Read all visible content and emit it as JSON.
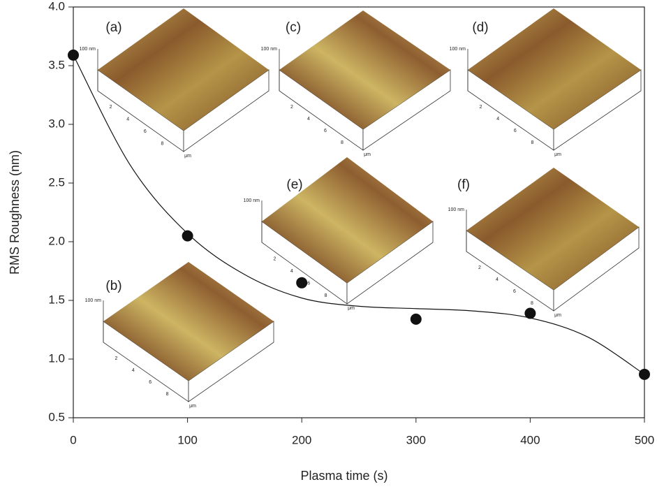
{
  "chart_data": {
    "type": "scatter",
    "x_label": "Plasma time (s)",
    "y_label": "RMS Roughness (nm)",
    "x": [
      0,
      100,
      200,
      300,
      400,
      500
    ],
    "values": [
      3.59,
      2.05,
      1.65,
      1.34,
      1.39,
      0.87
    ],
    "color": "#111111",
    "fit": {
      "x": [
        0,
        50,
        100,
        150,
        200,
        250,
        300,
        350,
        400,
        450,
        500
      ],
      "values": [
        3.59,
        2.65,
        2.07,
        1.72,
        1.52,
        1.45,
        1.43,
        1.41,
        1.35,
        1.19,
        0.87
      ],
      "color": "#111111"
    },
    "xlim": [
      0,
      500
    ],
    "xticks": [
      0,
      100,
      200,
      300,
      400,
      500
    ],
    "ylim": [
      0.5,
      4.0
    ],
    "yticks": [
      0.5,
      {
        "value": 1,
        "label": "1.0"
      },
      1.5,
      {
        "value": 2,
        "label": "2.0"
      },
      2.5,
      {
        "value": 3,
        "label": "3.0"
      },
      3.5,
      {
        "value": 4,
        "label": "4.0"
      }
    ],
    "insets": [
      {
        "label": "(a)"
      },
      {
        "label": "(b)"
      },
      {
        "label": "(c)"
      },
      {
        "label": "(d)"
      },
      {
        "label": "(e)"
      },
      {
        "label": "(f)"
      }
    ],
    "inset_axis": {
      "height_label": "100 nm",
      "ticks": [
        2,
        4,
        6,
        8
      ],
      "unit": "μm"
    }
  }
}
